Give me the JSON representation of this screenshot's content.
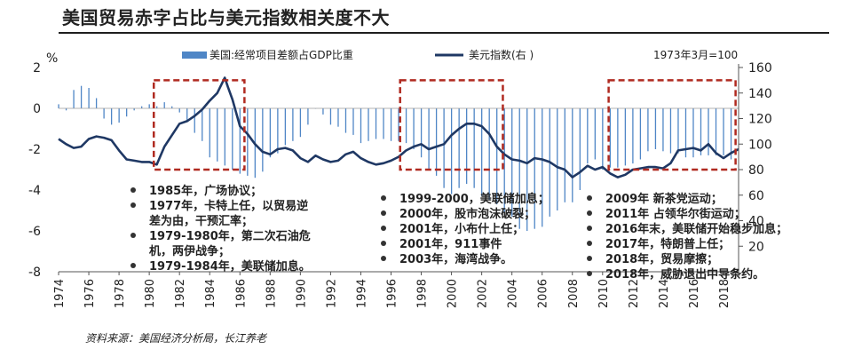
{
  "title": "美国贸易赤字占比与美元指数相关度不大",
  "source": "资料来源：美国经济分析局，长江养老",
  "chart_data": {
    "type": "bar+line",
    "title": "美国贸易赤字占比与美元指数相关度不大",
    "y_left_unit": "%",
    "y_left_ticks": [
      "2",
      "0",
      "-2",
      "-4",
      "-6",
      "-8"
    ],
    "y_left_range": [
      -8,
      2
    ],
    "y_right_ticks": [
      "160",
      "140",
      "120",
      "100",
      "80",
      "60",
      "40",
      "20"
    ],
    "y_right_range": [
      0,
      160
    ],
    "x_ticks": [
      "1974",
      "1976",
      "1978",
      "1980",
      "1982",
      "1984",
      "1986",
      "1988",
      "1990",
      "1992",
      "1994",
      "1996",
      "1998",
      "2000",
      "2002",
      "2004",
      "2006",
      "2008",
      "2010",
      "2012",
      "2014",
      "2016",
      "2018"
    ],
    "x_range": [
      1974,
      2019
    ],
    "base_note": "1973年3月=100",
    "legend_position": "top",
    "series": [
      {
        "name": "美国:经常项目差额占GDP比重",
        "type": "bar",
        "axis": "left",
        "color": "#4f86c6",
        "x": [
          1974.0,
          1974.5,
          1975.0,
          1975.5,
          1976.0,
          1976.5,
          1977.0,
          1977.5,
          1978.0,
          1978.5,
          1979.0,
          1979.5,
          1980.0,
          1980.5,
          1981.0,
          1981.5,
          1982.0,
          1982.5,
          1983.0,
          1983.5,
          1984.0,
          1984.5,
          1985.0,
          1985.5,
          1986.0,
          1986.5,
          1987.0,
          1987.5,
          1988.0,
          1988.5,
          1989.0,
          1989.5,
          1990.0,
          1990.5,
          1991.0,
          1991.5,
          1992.0,
          1992.5,
          1993.0,
          1993.5,
          1994.0,
          1994.5,
          1995.0,
          1995.5,
          1996.0,
          1996.5,
          1997.0,
          1997.5,
          1998.0,
          1998.5,
          1999.0,
          1999.5,
          2000.0,
          2000.5,
          2001.0,
          2001.5,
          2002.0,
          2002.5,
          2003.0,
          2003.5,
          2004.0,
          2004.5,
          2005.0,
          2005.5,
          2006.0,
          2006.5,
          2007.0,
          2007.5,
          2008.0,
          2008.5,
          2009.0,
          2009.5,
          2010.0,
          2010.5,
          2011.0,
          2011.5,
          2012.0,
          2012.5,
          2013.0,
          2013.5,
          2014.0,
          2014.5,
          2015.0,
          2015.5,
          2016.0,
          2016.5,
          2017.0,
          2017.5,
          2018.0,
          2018.5
        ],
        "values": [
          0.2,
          -0.1,
          0.9,
          1.1,
          1.0,
          0.5,
          -0.5,
          -0.8,
          -0.7,
          -0.4,
          -0.1,
          0.1,
          0.2,
          0.1,
          0.3,
          0.1,
          -0.2,
          -0.6,
          -1.2,
          -1.6,
          -2.4,
          -2.6,
          -2.8,
          -3.0,
          -3.2,
          -3.3,
          -3.4,
          -3.1,
          -2.4,
          -2.2,
          -1.8,
          -1.6,
          -1.4,
          -0.8,
          0.0,
          -0.3,
          -0.8,
          -0.9,
          -1.2,
          -1.3,
          -1.7,
          -1.6,
          -1.5,
          -1.5,
          -1.6,
          -1.6,
          -1.7,
          -2.0,
          -2.4,
          -3.0,
          -3.3,
          -3.9,
          -4.2,
          -3.9,
          -3.7,
          -3.9,
          -4.3,
          -4.5,
          -4.7,
          -5.1,
          -5.3,
          -5.9,
          -6.0,
          -5.9,
          -5.8,
          -5.3,
          -5.0,
          -4.6,
          -4.6,
          -4.0,
          -2.7,
          -2.5,
          -3.0,
          -2.9,
          -2.9,
          -2.8,
          -2.7,
          -2.5,
          -2.1,
          -2.0,
          -2.1,
          -2.2,
          -2.2,
          -2.4,
          -2.4,
          -2.3,
          -2.3,
          -2.3,
          -2.3,
          -2.5
        ]
      },
      {
        "name": "美元指数(右 )",
        "type": "line",
        "axis": "right",
        "color": "#1f3864",
        "x": [
          1974.0,
          1974.5,
          1975.0,
          1975.5,
          1976.0,
          1976.5,
          1977.0,
          1977.5,
          1978.0,
          1978.5,
          1979.0,
          1979.5,
          1980.0,
          1980.5,
          1981.0,
          1981.5,
          1982.0,
          1982.5,
          1983.0,
          1983.5,
          1984.0,
          1984.5,
          1985.0,
          1985.2,
          1985.5,
          1986.0,
          1986.5,
          1987.0,
          1987.5,
          1988.0,
          1988.5,
          1989.0,
          1989.5,
          1990.0,
          1990.5,
          1991.0,
          1991.5,
          1992.0,
          1992.5,
          1993.0,
          1993.5,
          1994.0,
          1994.5,
          1995.0,
          1995.5,
          1996.0,
          1996.5,
          1997.0,
          1997.5,
          1998.0,
          1998.5,
          1999.0,
          1999.5,
          2000.0,
          2000.5,
          2001.0,
          2001.5,
          2002.0,
          2002.5,
          2003.0,
          2003.5,
          2004.0,
          2004.5,
          2005.0,
          2005.5,
          2006.0,
          2006.5,
          2007.0,
          2007.5,
          2008.0,
          2008.5,
          2009.0,
          2009.5,
          2010.0,
          2010.5,
          2011.0,
          2011.5,
          2012.0,
          2012.5,
          2013.0,
          2013.5,
          2014.0,
          2014.5,
          2015.0,
          2015.5,
          2016.0,
          2016.5,
          2017.0,
          2017.5,
          2018.0,
          2018.5,
          2019.0
        ],
        "values": [
          104,
          100,
          97,
          98,
          104,
          106,
          105,
          103,
          95,
          88,
          87,
          86,
          86,
          84,
          98,
          107,
          116,
          118,
          122,
          127,
          134,
          140,
          152,
          145,
          135,
          114,
          108,
          100,
          94,
          92,
          96,
          97,
          95,
          89,
          86,
          91,
          88,
          86,
          87,
          92,
          94,
          89,
          86,
          84,
          85,
          87,
          90,
          95,
          98,
          100,
          96,
          98,
          100,
          107,
          112,
          116,
          116,
          114,
          108,
          98,
          92,
          88,
          87,
          85,
          89,
          88,
          86,
          82,
          80,
          74,
          78,
          83,
          80,
          82,
          77,
          74,
          76,
          80,
          81,
          82,
          82,
          81,
          85,
          95,
          96,
          97,
          95,
          100,
          93,
          89,
          93,
          96
        ]
      }
    ],
    "annotation_groups": [
      {
        "items": [
          "1985年，广场协议；",
          "1977年，卡特上任，以贸易逆差为由，干预汇率；",
          "1979-1980年，第二次石油危机，两伊战争；",
          "1979-1984年，美联储加息。"
        ]
      },
      {
        "items": [
          "1999-2000，美联储加息；",
          "2000年，股市泡沫破裂；",
          "2001年，小布什上任；",
          "2001年，911事件",
          "2003年，海湾战争。"
        ]
      },
      {
        "items": [
          "2009年 新茶党运动；",
          "2011年 占领华尔街运动；",
          "2016年末，美联储开始稳步加息；",
          "2017年，特朗普上任；",
          "2018年，贸易摩擦；",
          "2018年，威胁退出中导条约。"
        ]
      }
    ],
    "highlight_periods": [
      [
        1980.3,
        1986.3
      ],
      [
        1996.6,
        2003.4
      ],
      [
        2010.4,
        2018.8
      ]
    ],
    "grid": false
  }
}
